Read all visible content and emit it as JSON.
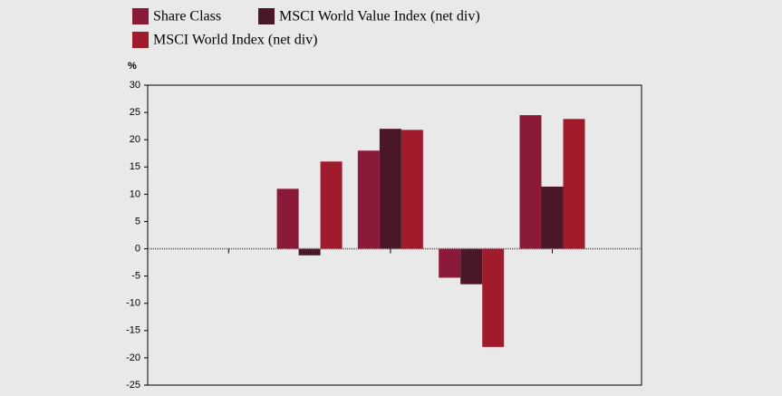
{
  "chart_data": {
    "type": "bar",
    "y_label": "%",
    "categories": [
      null,
      null,
      null,
      null,
      null
    ],
    "series": [
      {
        "name": "Share Class",
        "color": "#8a1a38",
        "values": [
          null,
          11,
          18,
          -5.3,
          24.5
        ]
      },
      {
        "name": "MSCI World Value Index (net div)",
        "color": "#4a1729",
        "values": [
          null,
          -1.2,
          22,
          -6.5,
          11.4
        ]
      },
      {
        "name": "MSCI World Index (net div)",
        "color": "#a01b2b",
        "values": [
          null,
          16,
          21.8,
          -18,
          23.8
        ]
      }
    ],
    "ylim": [
      -25,
      30
    ],
    "yticks": [
      30,
      25,
      20,
      15,
      10,
      5,
      0,
      -5,
      -10,
      -15,
      -20,
      -25
    ],
    "legend": "top"
  }
}
